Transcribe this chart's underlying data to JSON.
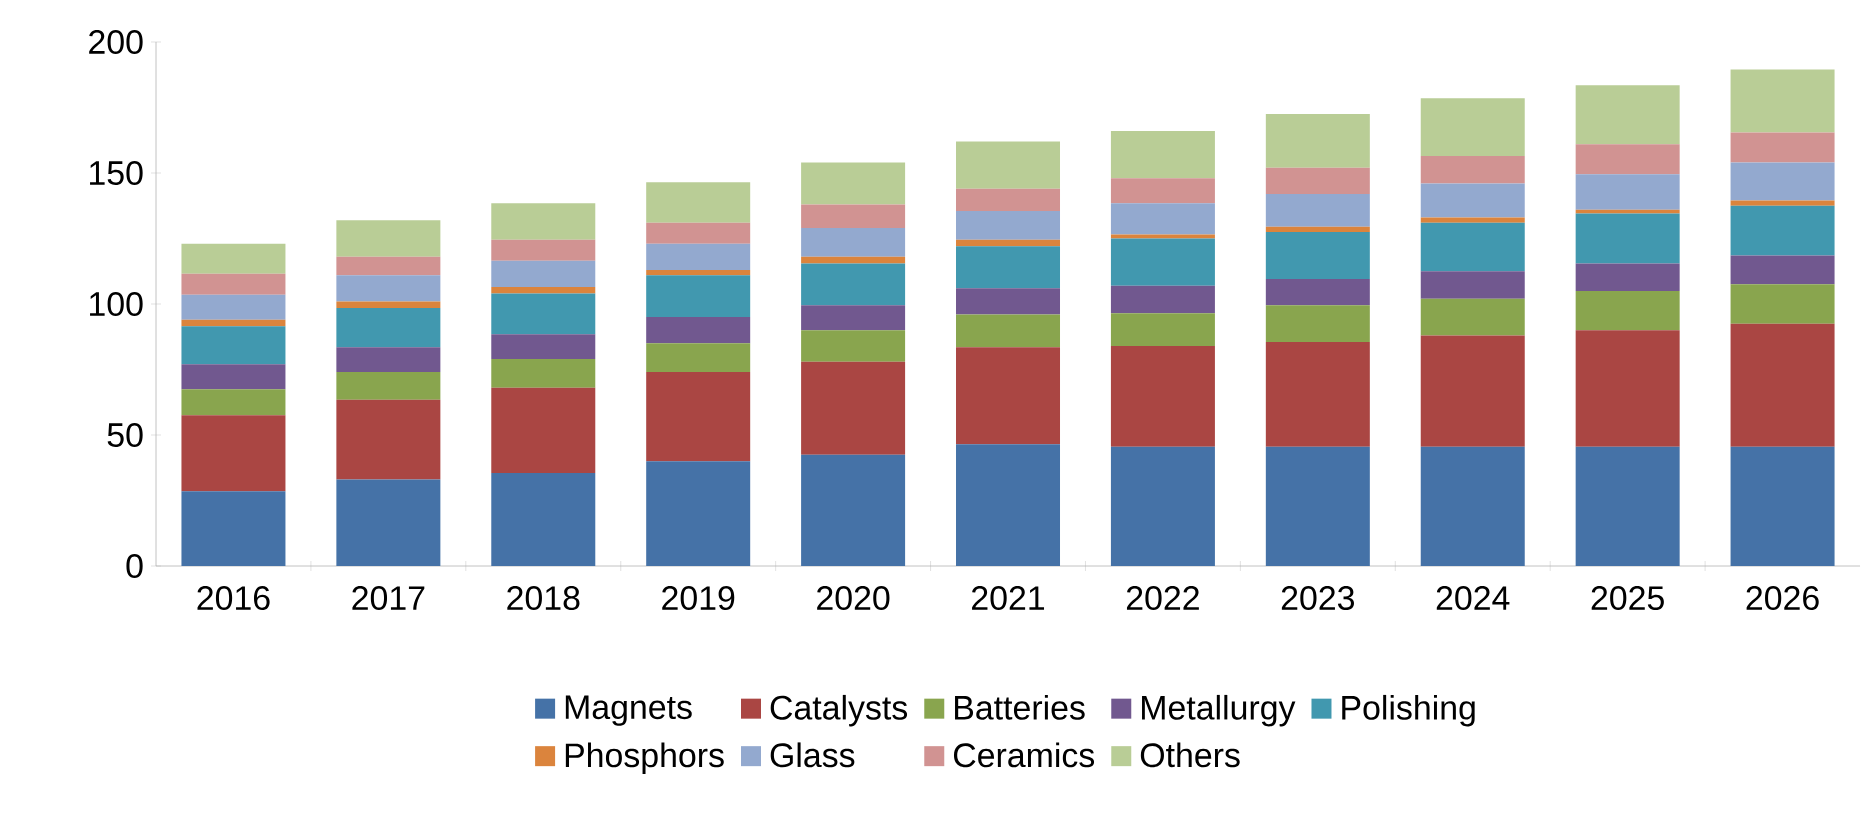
{
  "chart_data": {
    "type": "bar",
    "stacked": true,
    "legend": "bottom",
    "categories": [
      "2016",
      "2017",
      "2018",
      "2019",
      "2020",
      "2021",
      "2022",
      "2023",
      "2024",
      "2025",
      "2026"
    ],
    "ylim": [
      0,
      200
    ],
    "yticks": [
      0,
      50,
      100,
      150,
      200
    ],
    "series": [
      {
        "name": "Magnets",
        "color": "#4572a7",
        "values": [
          28.5,
          33,
          35.5,
          40,
          42.5,
          46.5,
          45.5,
          45.5,
          45.5,
          45.5,
          45.5
        ]
      },
      {
        "name": "Catalysts",
        "color": "#aa4643",
        "values": [
          29,
          30.5,
          32.5,
          34,
          35.5,
          37,
          38.5,
          40,
          42.5,
          44.5,
          47
        ]
      },
      {
        "name": "Batteries",
        "color": "#89a54e",
        "values": [
          10,
          10.5,
          11,
          11,
          12,
          12.5,
          12.5,
          14,
          14,
          15,
          15
        ]
      },
      {
        "name": "Metallurgy",
        "color": "#71588f",
        "values": [
          9.5,
          9.5,
          9.5,
          10,
          9.5,
          10,
          10.5,
          10,
          10.5,
          10.5,
          11
        ]
      },
      {
        "name": "Polishing",
        "color": "#4198af",
        "values": [
          14.5,
          15,
          15.5,
          16,
          16,
          16,
          18,
          18,
          18.5,
          19,
          19
        ]
      },
      {
        "name": "Phosphors",
        "color": "#db843d",
        "values": [
          2.5,
          2.5,
          2.5,
          2,
          2.5,
          2.5,
          1.5,
          2,
          2,
          1.5,
          2
        ]
      },
      {
        "name": "Glass",
        "color": "#93a9cf",
        "values": [
          9.5,
          10,
          10,
          10,
          11,
          11,
          12,
          12.5,
          13,
          13.5,
          14.5
        ]
      },
      {
        "name": "Ceramics",
        "color": "#d19392",
        "values": [
          8,
          7,
          8,
          8,
          9,
          8.5,
          9.5,
          10,
          10.5,
          11.5,
          11.5
        ]
      },
      {
        "name": "Others",
        "color": "#b9cd96",
        "values": [
          11.5,
          14,
          14,
          15.5,
          16,
          18,
          18,
          20.5,
          22,
          22.5,
          24
        ]
      }
    ]
  }
}
